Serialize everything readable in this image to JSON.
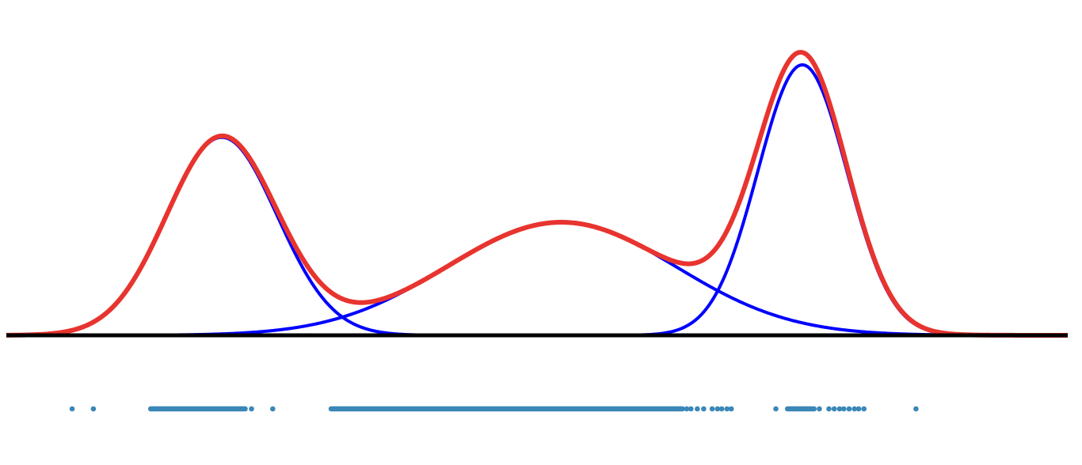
{
  "chart_data": {
    "type": "line",
    "title": "",
    "xlabel": "",
    "ylabel": "",
    "xlim": [
      0,
      1
    ],
    "ylim": [
      0,
      1
    ],
    "grid": false,
    "colors": {
      "components": "#0000ff",
      "mixture": "#e8342f",
      "baseline": "#000000",
      "samples": "#3a87b8"
    },
    "components": [
      {
        "mean": 0.203,
        "sd": 0.052,
        "peak": 0.732
      },
      {
        "mean": 0.523,
        "sd": 0.108,
        "peak": 0.418
      },
      {
        "mean": 0.75,
        "sd": 0.042,
        "peak": 1.0
      }
    ],
    "samples": {
      "singles": [
        0.062,
        0.082,
        0.231,
        0.251,
        0.641,
        0.645,
        0.651,
        0.657,
        0.665,
        0.67,
        0.674,
        0.679,
        0.683,
        0.725,
        0.766,
        0.775,
        0.78,
        0.785,
        0.789,
        0.794,
        0.799,
        0.803,
        0.808,
        0.857
      ],
      "clusters": [
        [
          0.136,
          0.225
        ],
        [
          0.306,
          0.637
        ],
        [
          0.736,
          0.761
        ]
      ]
    }
  }
}
